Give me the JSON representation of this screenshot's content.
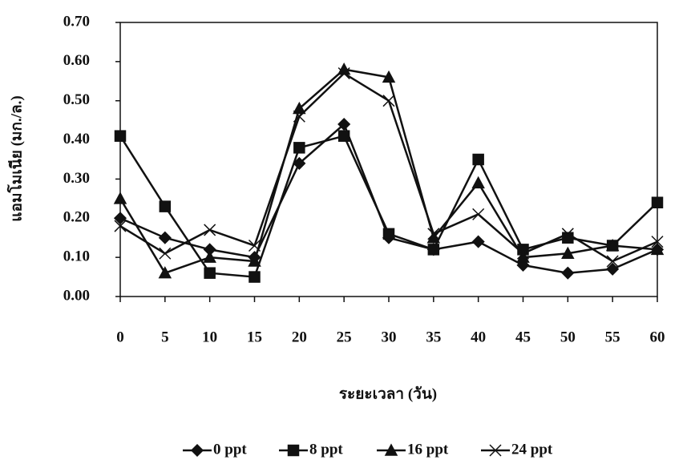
{
  "chart_data": {
    "type": "line",
    "x_label": "ระยะเวลา (วัน)",
    "y_label": "แอมโมเนีย (มก./ล.)",
    "x": [
      0,
      5,
      10,
      15,
      20,
      25,
      30,
      35,
      40,
      45,
      50,
      55,
      60
    ],
    "xlim": [
      0,
      60
    ],
    "xticks": [
      0,
      5,
      10,
      15,
      20,
      25,
      30,
      35,
      40,
      45,
      50,
      55,
      60
    ],
    "ylim": [
      0,
      0.7
    ],
    "yticks": [
      {
        "value": 0,
        "label": "0.00"
      },
      {
        "value": 0.1,
        "label": "0.10"
      },
      {
        "value": 0.2,
        "label": "0.20"
      },
      {
        "value": 0.3,
        "label": "0.30"
      },
      {
        "value": 0.4,
        "label": "0.40"
      },
      {
        "value": 0.5,
        "label": "0.50"
      },
      {
        "value": 0.6,
        "label": "0.60"
      },
      {
        "value": 0.7,
        "label": "0.70"
      }
    ],
    "grid": false,
    "legend": "bottom",
    "series": [
      {
        "name": "0 ppt",
        "color": "#111111",
        "marker": "diamond",
        "values": [
          0.2,
          0.15,
          0.12,
          0.1,
          0.34,
          0.44,
          0.15,
          0.12,
          0.14,
          0.08,
          0.06,
          0.07,
          0.12
        ]
      },
      {
        "name": "8 ppt",
        "color": "#111111",
        "marker": "square",
        "values": [
          0.41,
          0.23,
          0.06,
          0.05,
          0.38,
          0.41,
          0.16,
          0.12,
          0.35,
          0.12,
          0.15,
          0.13,
          0.24
        ]
      },
      {
        "name": "16 ppt",
        "color": "#111111",
        "marker": "triangle",
        "values": [
          0.25,
          0.06,
          0.1,
          0.09,
          0.48,
          0.58,
          0.56,
          0.15,
          0.29,
          0.1,
          0.11,
          0.13,
          0.12
        ]
      },
      {
        "name": "24 ppt",
        "color": "#111111",
        "marker": "x",
        "values": [
          0.18,
          0.11,
          0.17,
          0.13,
          0.46,
          0.57,
          0.5,
          0.16,
          0.21,
          0.11,
          0.16,
          0.09,
          0.14
        ]
      }
    ]
  }
}
